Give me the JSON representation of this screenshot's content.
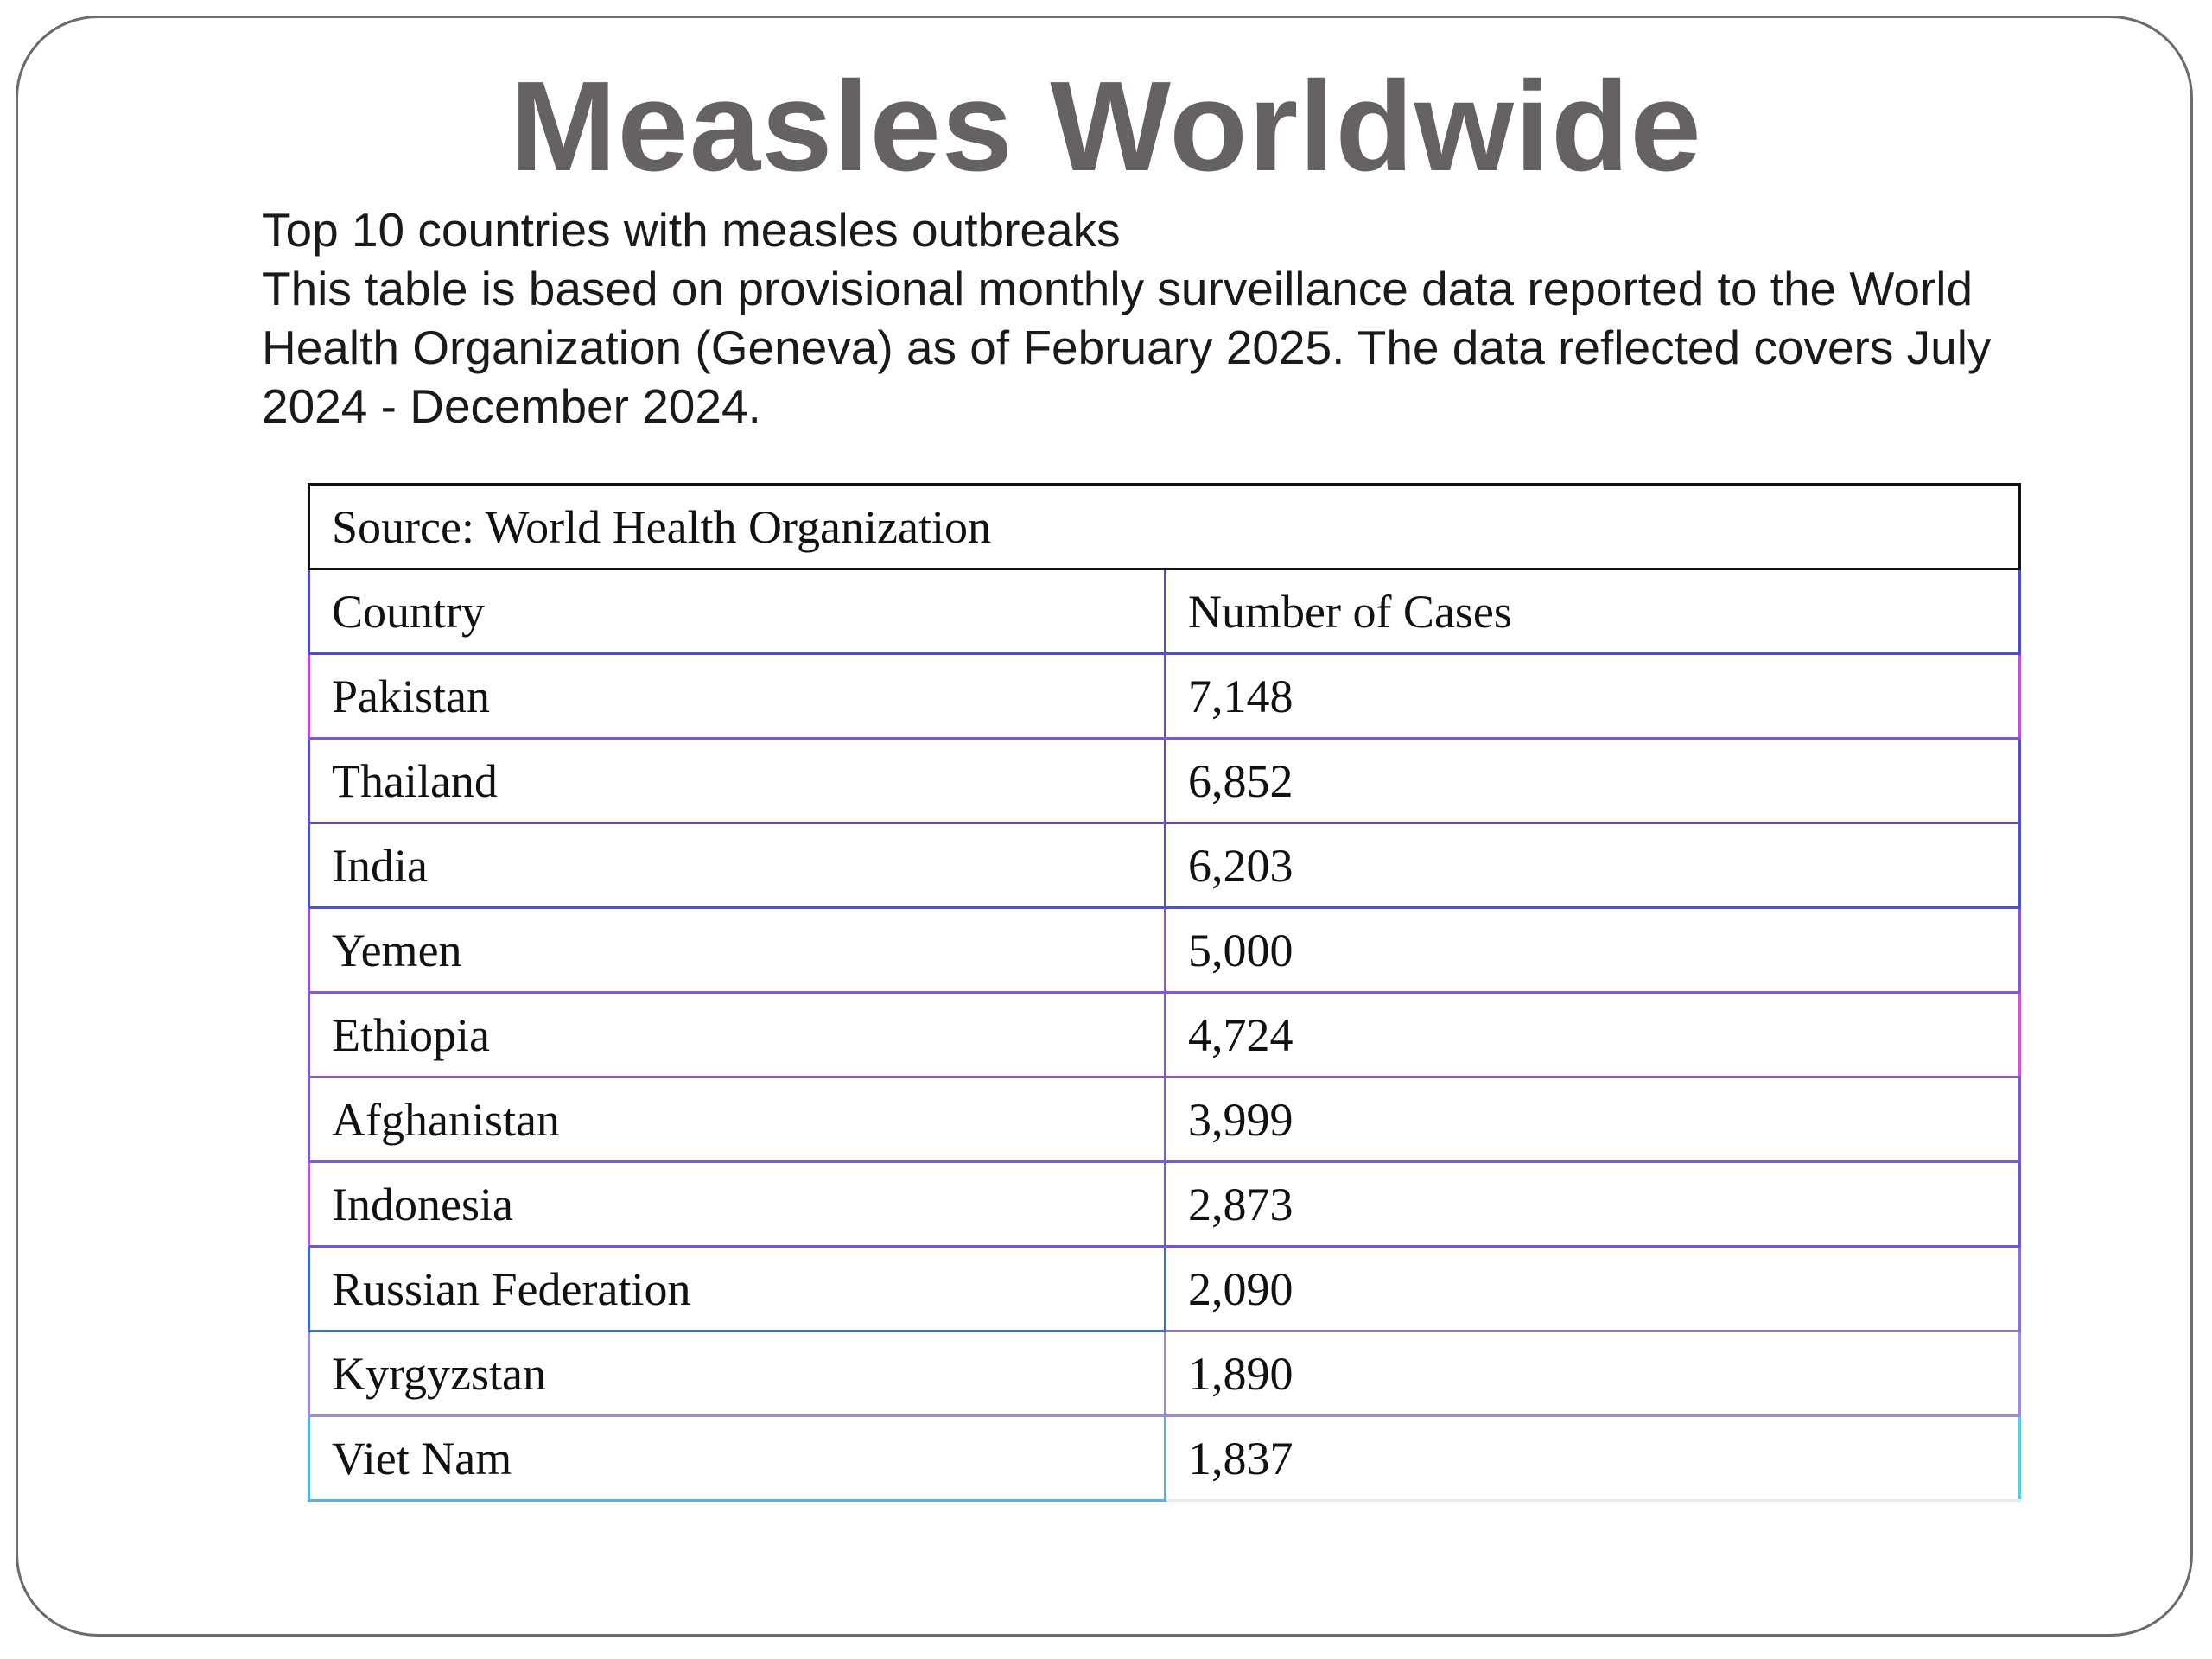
{
  "slide": {
    "title": "Measles Worldwide",
    "subtitle_lines": [
      "Top 10 countries with measles outbreaks",
      "This table is based on provisional monthly surveillance data reported to the World Health Organization (Geneva) as of February 2025. The data reflected covers July 2024 - December 2024."
    ]
  },
  "table": {
    "source": "Source: World Health Organization",
    "headers": [
      "Country",
      "Number of Cases"
    ],
    "rows": [
      {
        "country": "Pakistan",
        "cases": "7,148"
      },
      {
        "country": "Thailand",
        "cases": "6,852"
      },
      {
        "country": "India",
        "cases": "6,203"
      },
      {
        "country": "Yemen",
        "cases": "5,000"
      },
      {
        "country": "Ethiopia",
        "cases": "4,724"
      },
      {
        "country": "Afghanistan",
        "cases": "3,999"
      },
      {
        "country": "Indonesia",
        "cases": "2,873"
      },
      {
        "country": "Russian Federation",
        "cases": "2,090"
      },
      {
        "country": "Kyrgyzstan",
        "cases": "1,890"
      },
      {
        "country": "Viet Nam",
        "cases": "1,837"
      }
    ]
  },
  "colors": {
    "title": "#676262",
    "frame": "#6b6b6b",
    "table_border_accent": "#7b58d8"
  }
}
